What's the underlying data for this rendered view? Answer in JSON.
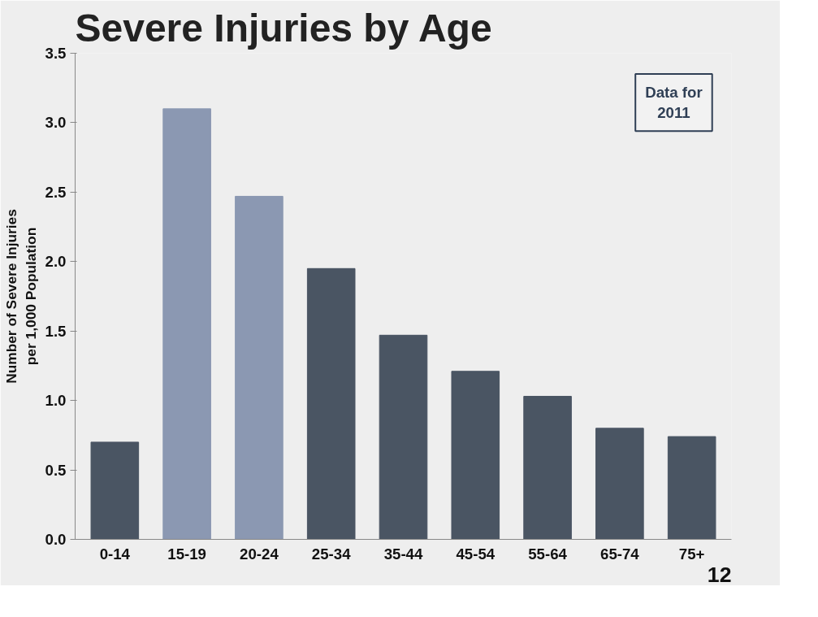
{
  "chart_data": {
    "type": "bar",
    "title": "Severe Injuries by Age",
    "ylabel": "Number of Severe Injuries\nper 1,000 Population",
    "categories": [
      "0-14",
      "15-19",
      "20-24",
      "25-34",
      "35-44",
      "45-54",
      "55-64",
      "65-74",
      "75+"
    ],
    "values": [
      0.7,
      3.1,
      2.47,
      1.95,
      1.47,
      1.21,
      1.03,
      0.8,
      0.74
    ],
    "colors": [
      "#4a5563",
      "#8b98b2",
      "#8b98b2",
      "#4a5563",
      "#4a5563",
      "#4a5563",
      "#4a5563",
      "#4a5563",
      "#4a5563"
    ],
    "ylim": [
      0,
      3.5
    ],
    "yticks": [
      {
        "value": 0,
        "label": "0.0"
      },
      0.5,
      {
        "value": 1,
        "label": "1.0"
      },
      1.5,
      {
        "value": 2,
        "label": "2.0"
      },
      2.5,
      {
        "value": 3,
        "label": "3.0"
      },
      3.5
    ],
    "grid": false,
    "annotations": [
      "Data for\n2011",
      "12"
    ]
  }
}
